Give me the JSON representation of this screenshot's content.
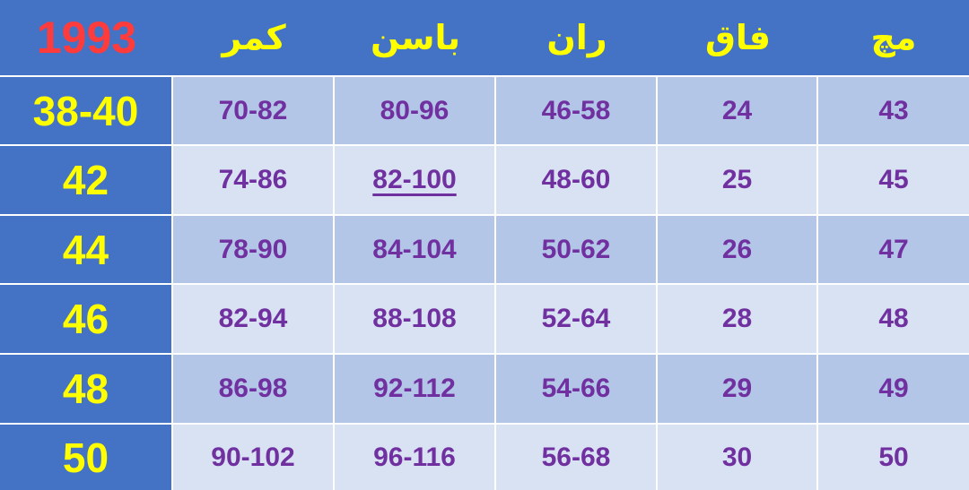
{
  "header": {
    "year": "1993",
    "columns": [
      "کمر",
      "باسن",
      "ران",
      "فاق",
      "مچ"
    ]
  },
  "rows": [
    {
      "size": "38-40",
      "values": [
        "70-82",
        "80-96",
        "46-58",
        "24",
        "43"
      ]
    },
    {
      "size": "42",
      "values": [
        "74-86",
        "82-100",
        "48-60",
        "25",
        "45"
      ]
    },
    {
      "size": "44",
      "values": [
        "78-90",
        "84-104",
        "50-62",
        "26",
        "47"
      ]
    },
    {
      "size": "46",
      "values": [
        "82-94",
        "88-108",
        "52-64",
        "28",
        "48"
      ]
    },
    {
      "size": "48",
      "values": [
        "86-98",
        "92-112",
        "54-66",
        "29",
        "49"
      ]
    },
    {
      "size": "50",
      "values": [
        "90-102",
        "96-116",
        "56-68",
        "30",
        "50"
      ]
    }
  ],
  "underlined_cell": "82-100",
  "colors": {
    "header_bg": "#4472C4",
    "header_text": "#FFFF00",
    "year_text": "#FF3B3B",
    "row_odd": "#B4C6E7",
    "row_even": "#D9E2F3",
    "value_text": "#7030A0"
  }
}
